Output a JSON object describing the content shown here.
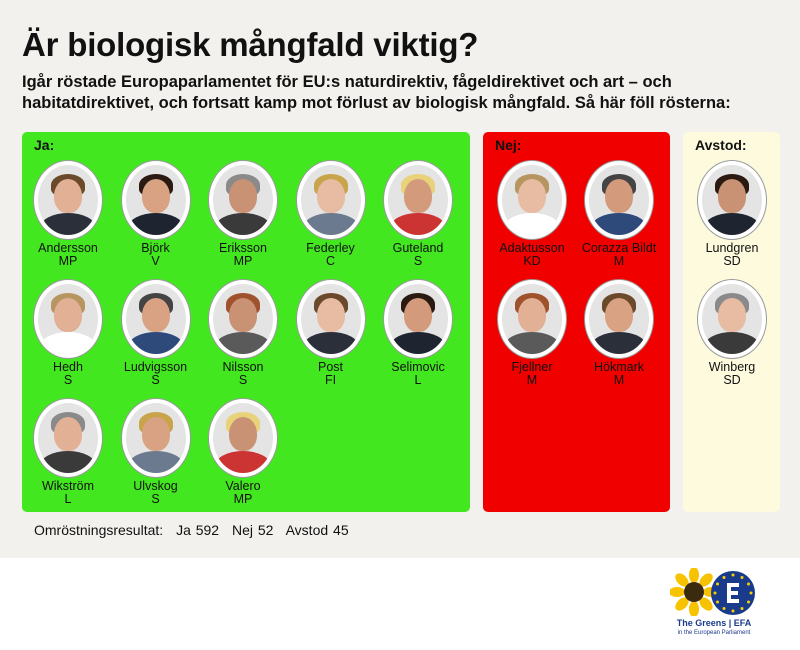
{
  "title": "Är biologisk mångfald viktig?",
  "subtitle": "Igår röstade Europaparlamentet för EU:s naturdirektiv, fågeldirektivet och art – och habitatdirektivet, och fortsatt kamp mot förlust av biologisk mångfald. Så här föll rösterna:",
  "panels": {
    "ja": {
      "label": "Ja:",
      "color": "#43e71f",
      "members": [
        {
          "name": "Andersson",
          "party": "MP"
        },
        {
          "name": "Björk",
          "party": "V"
        },
        {
          "name": "Eriksson",
          "party": "MP"
        },
        {
          "name": "Federley",
          "party": "C"
        },
        {
          "name": "Guteland",
          "party": "S"
        },
        {
          "name": "Hedh",
          "party": "S"
        },
        {
          "name": "Ludvigsson",
          "party": "S"
        },
        {
          "name": "Nilsson",
          "party": "S"
        },
        {
          "name": "Post",
          "party": "FI"
        },
        {
          "name": "Selimovic",
          "party": "L"
        },
        {
          "name": "Wikström",
          "party": "L"
        },
        {
          "name": "Ulvskog",
          "party": "S"
        },
        {
          "name": "Valero",
          "party": "MP"
        }
      ]
    },
    "nej": {
      "label": "Nej:",
      "color": "#f10000",
      "members": [
        {
          "name": "Adaktusson",
          "party": "KD"
        },
        {
          "name": "Corazza Bildt",
          "party": "M"
        },
        {
          "name": "Fjellner",
          "party": "M"
        },
        {
          "name": "Hökmark",
          "party": "M"
        }
      ]
    },
    "avstod": {
      "label": "Avstod:",
      "color": "#fdfade",
      "members": [
        {
          "name": "Lundgren",
          "party": "SD"
        },
        {
          "name": "Winberg",
          "party": "SD"
        }
      ]
    }
  },
  "results": {
    "label": "Omröstningsresultat:",
    "ja": "Ja 592",
    "nej": "Nej 52",
    "avstod": "Avstod 45"
  },
  "logo": {
    "text": "The Greens | EFA",
    "subtext": "in the European Parliament"
  }
}
